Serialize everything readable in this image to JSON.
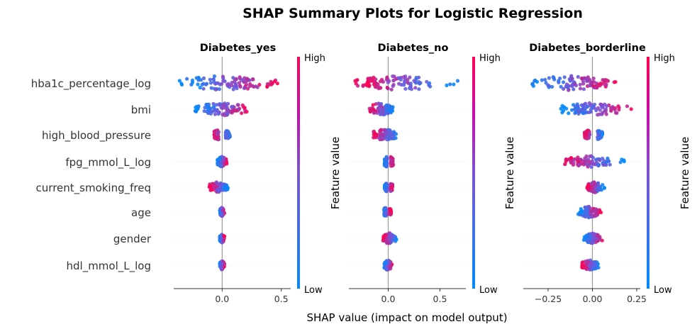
{
  "figure": {
    "title": "SHAP Summary Plots for Logistic Regression",
    "xlabel": "SHAP value (impact on model output)",
    "colorbar_label": "Feature value",
    "colorbar_high": "High",
    "colorbar_low": "Low",
    "colors": {
      "low": "#008bfb",
      "high": "#ff0052",
      "zero_line": "#999999",
      "grid": "#cccccc",
      "text": "#333333"
    }
  },
  "features": [
    "hba1c_percentage_log",
    "bmi",
    "high_blood_pressure",
    "fpg_mmol_L_log",
    "current_smoking_freq",
    "age",
    "gender",
    "hdl_mmol_L_log"
  ],
  "chart_data": [
    {
      "type": "scatter",
      "subtype": "shap_beeswarm",
      "title": "Diabetes_yes",
      "xticks": [
        "0.0",
        "0.5"
      ],
      "xlim": [
        -0.41,
        0.58
      ],
      "xtick_values": [
        0.0,
        0.5
      ],
      "rows": [
        {
          "feature": "hba1c_percentage_log",
          "min": -0.36,
          "max": 0.51,
          "neg_color": "low",
          "spread": 1.0
        },
        {
          "feature": "bmi",
          "min": -0.23,
          "max": 0.28,
          "neg_color": "low",
          "spread": 0.8
        },
        {
          "feature": "high_blood_pressure",
          "min": -0.08,
          "max": 0.08,
          "neg_color": "high",
          "spread": 0.7,
          "binary": true
        },
        {
          "feature": "fpg_mmol_L_log",
          "min": -0.04,
          "max": 0.04,
          "neg_color": "low",
          "spread": 0.6
        },
        {
          "feature": "current_smoking_freq",
          "min": -0.11,
          "max": 0.05,
          "neg_color": "high",
          "spread": 0.6
        },
        {
          "feature": "age",
          "min": -0.02,
          "max": 0.02,
          "neg_color": "low",
          "spread": 0.5
        },
        {
          "feature": "gender",
          "min": -0.02,
          "max": 0.02,
          "neg_color": "low",
          "spread": 0.5
        },
        {
          "feature": "hdl_mmol_L_log",
          "min": -0.02,
          "max": 0.02,
          "neg_color": "low",
          "spread": 0.5
        }
      ]
    },
    {
      "type": "scatter",
      "subtype": "shap_beeswarm",
      "title": "Diabetes_no",
      "xticks": [
        "0.0",
        "0.5"
      ],
      "xlim": [
        -0.38,
        0.75
      ],
      "xtick_values": [
        0.0,
        0.5
      ],
      "rows": [
        {
          "feature": "hba1c_percentage_log",
          "min": -0.32,
          "max": 0.68,
          "neg_color": "high",
          "spread": 1.0
        },
        {
          "feature": "bmi",
          "min": -0.18,
          "max": 0.05,
          "neg_color": "high",
          "spread": 0.8
        },
        {
          "feature": "high_blood_pressure",
          "min": -0.15,
          "max": 0.11,
          "neg_color": "high",
          "spread": 0.7
        },
        {
          "feature": "fpg_mmol_L_log",
          "min": -0.04,
          "max": 0.06,
          "neg_color": "low",
          "spread": 0.8,
          "binary": true
        },
        {
          "feature": "current_smoking_freq",
          "min": -0.04,
          "max": 0.05,
          "neg_color": "low",
          "spread": 0.6,
          "binary": true
        },
        {
          "feature": "age",
          "min": -0.05,
          "max": 0.03,
          "neg_color": "low",
          "spread": 0.6,
          "binary": true
        },
        {
          "feature": "gender",
          "min": -0.05,
          "max": 0.08,
          "neg_color": "high",
          "spread": 0.7
        },
        {
          "feature": "hdl_mmol_L_log",
          "min": -0.04,
          "max": 0.04,
          "neg_color": "low",
          "spread": 0.6
        }
      ]
    },
    {
      "type": "scatter",
      "subtype": "shap_beeswarm",
      "title": "Diabetes_borderline",
      "xticks": [
        "−0.25",
        "0.00",
        "0.25"
      ],
      "xlim": [
        -0.39,
        0.27
      ],
      "xtick_values": [
        -0.25,
        0.0,
        0.25
      ],
      "rows": [
        {
          "feature": "hba1c_percentage_log",
          "min": -0.35,
          "max": 0.13,
          "neg_color": "low",
          "spread": 1.0
        },
        {
          "feature": "bmi",
          "min": -0.18,
          "max": 0.22,
          "neg_color": "low",
          "spread": 0.8
        },
        {
          "feature": "high_blood_pressure",
          "min": -0.05,
          "max": 0.07,
          "neg_color": "high",
          "spread": 0.7,
          "binary": true
        },
        {
          "feature": "fpg_mmol_L_log",
          "min": -0.16,
          "max": 0.18,
          "neg_color": "high",
          "spread": 0.7
        },
        {
          "feature": "current_smoking_freq",
          "min": -0.03,
          "max": 0.07,
          "neg_color": "high",
          "spread": 0.6
        },
        {
          "feature": "age",
          "min": -0.08,
          "max": 0.05,
          "neg_color": "low",
          "spread": 0.7
        },
        {
          "feature": "gender",
          "min": -0.05,
          "max": 0.06,
          "neg_color": "low",
          "spread": 0.6
        },
        {
          "feature": "hdl_mmol_L_log",
          "min": -0.06,
          "max": 0.04,
          "neg_color": "high",
          "spread": 0.6
        }
      ]
    }
  ]
}
